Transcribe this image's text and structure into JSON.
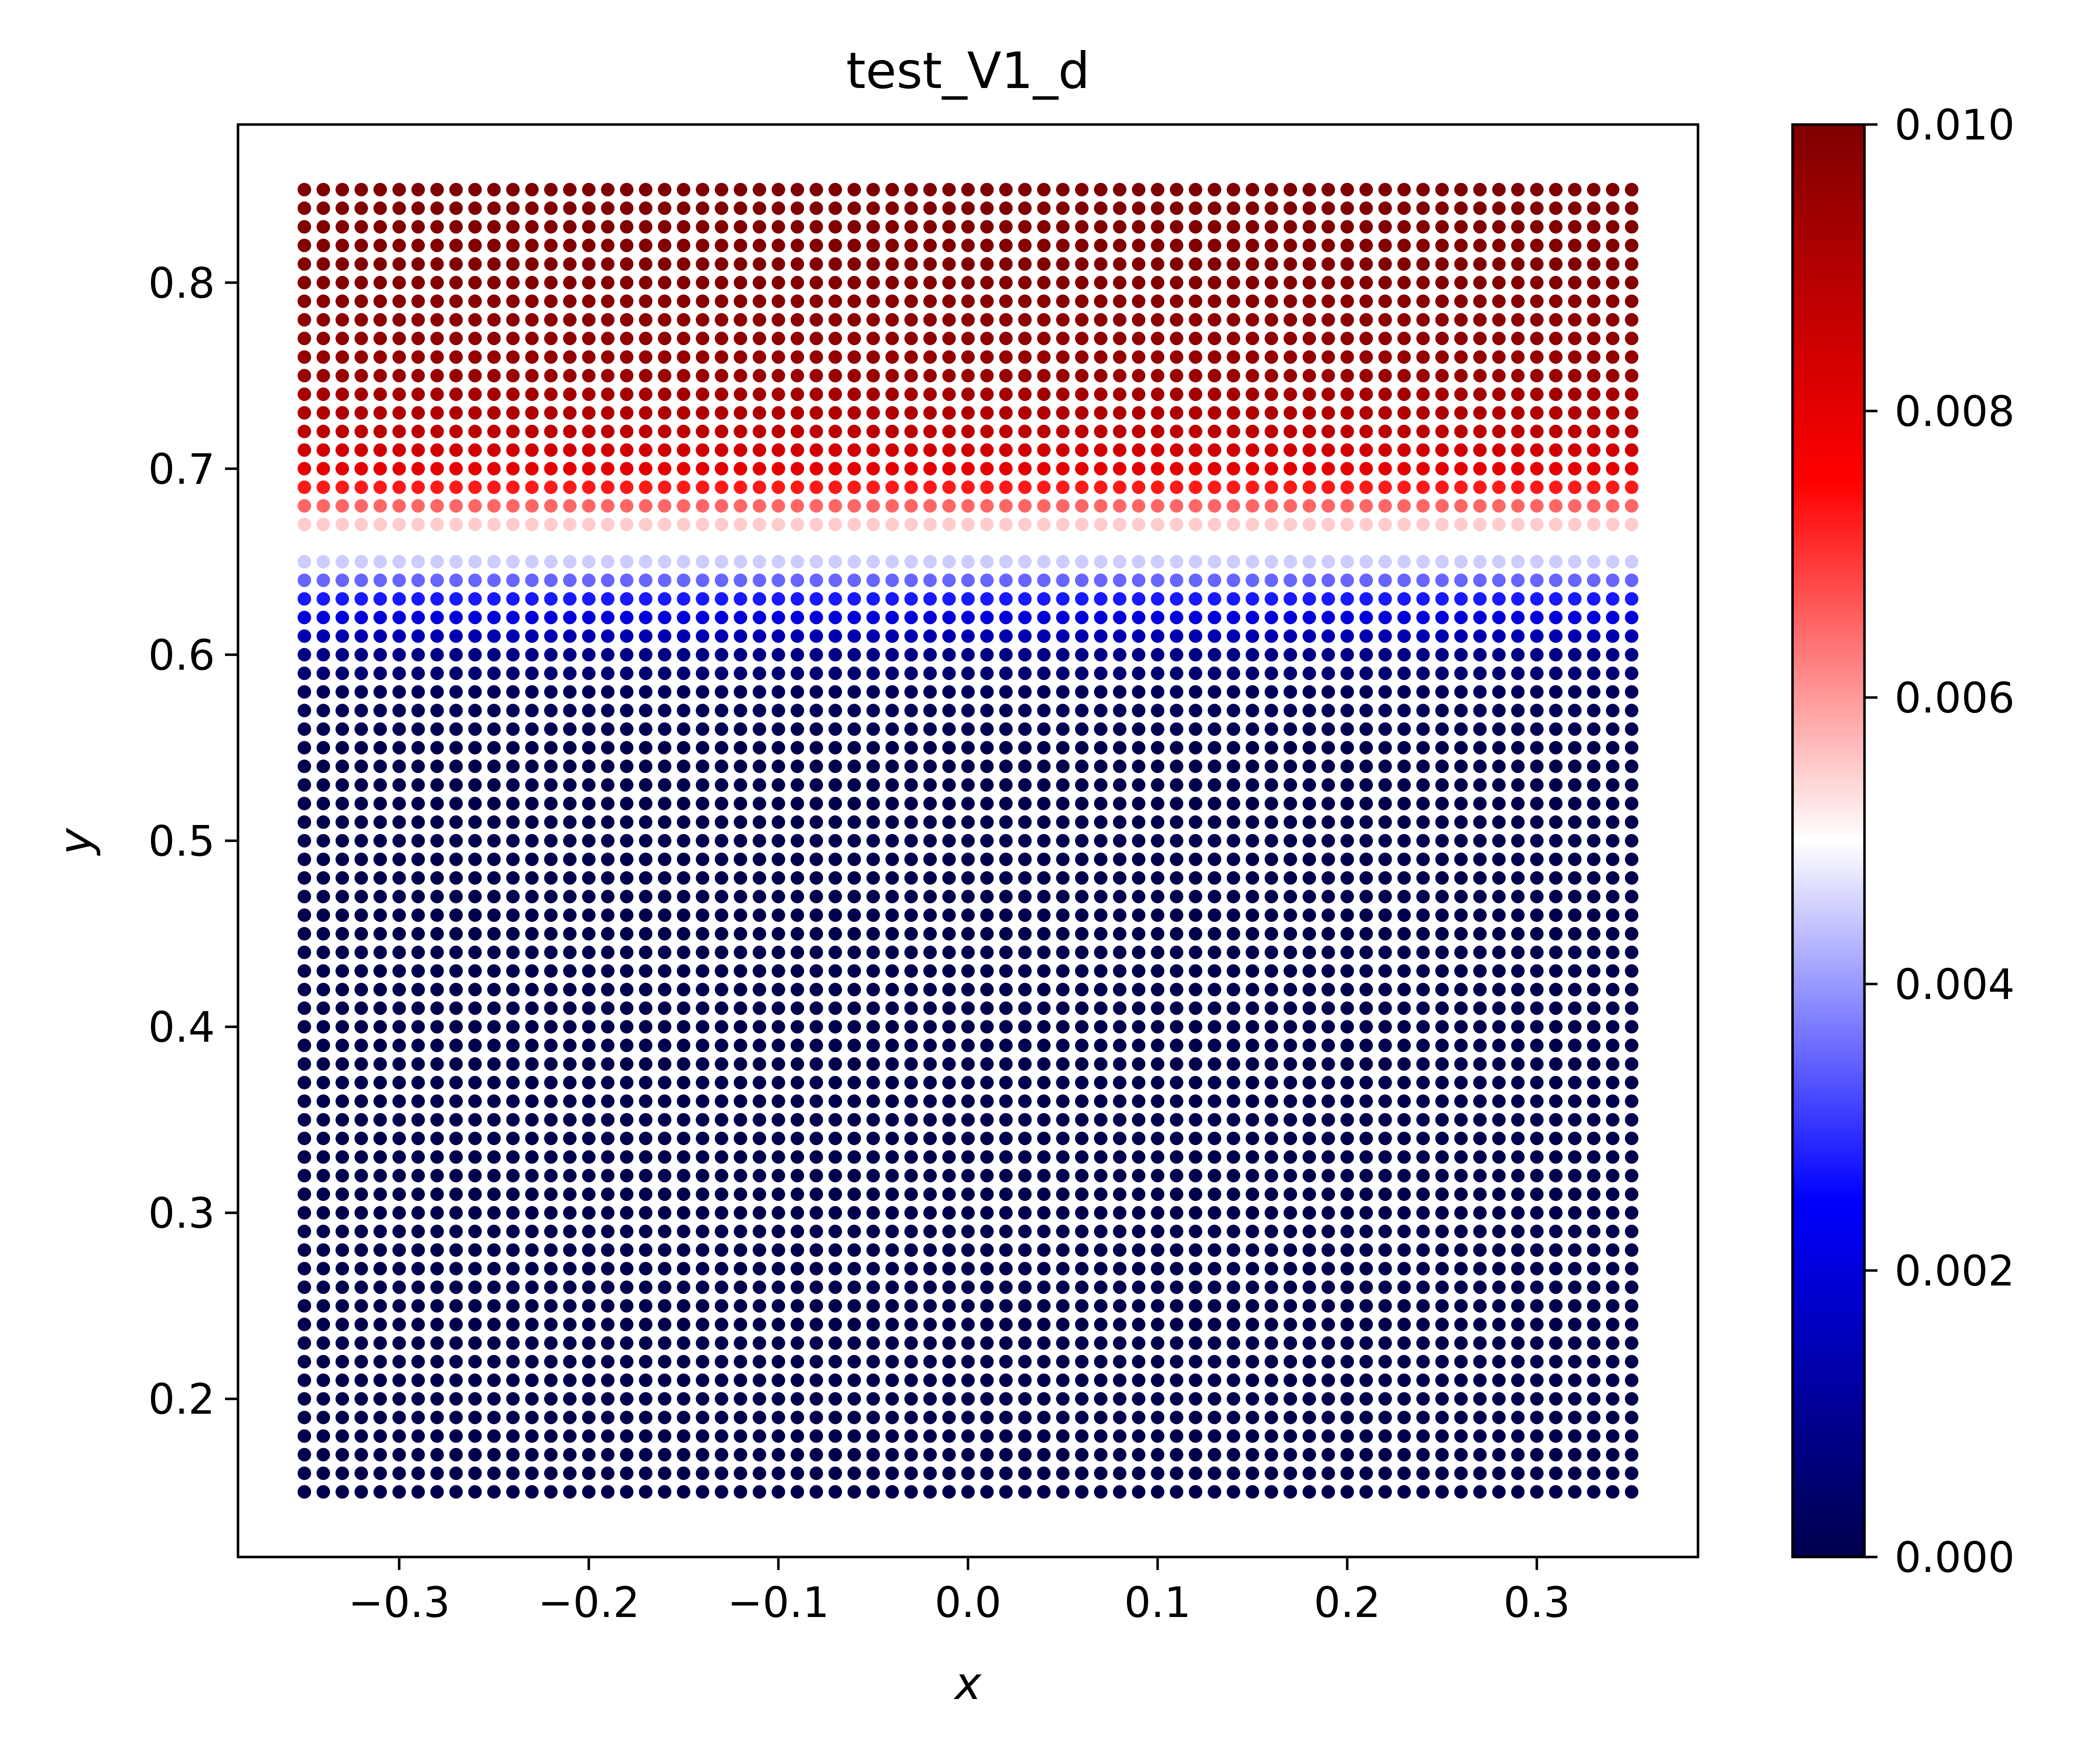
{
  "chart_data": {
    "type": "scatter",
    "title": "test_V1_d",
    "xlabel": "x",
    "ylabel": "y",
    "xlim": [
      -0.385,
      0.385
    ],
    "ylim": [
      0.115,
      0.885
    ],
    "x_ticks": [
      -0.3,
      -0.2,
      -0.1,
      0.0,
      0.1,
      0.2,
      0.3
    ],
    "x_tick_labels": [
      "−0.3",
      "−0.2",
      "−0.1",
      "0.0",
      "0.1",
      "0.2",
      "0.3"
    ],
    "y_ticks": [
      0.2,
      0.3,
      0.4,
      0.5,
      0.6,
      0.7,
      0.8
    ],
    "y_tick_labels": [
      "0.2",
      "0.3",
      "0.4",
      "0.5",
      "0.6",
      "0.7",
      "0.8"
    ],
    "grid": false,
    "points": {
      "x_range": [
        -0.35,
        0.35
      ],
      "y_range": [
        0.15,
        0.85
      ],
      "n_x": 71,
      "n_y": 71,
      "color_by": "y",
      "value_profile": [
        [
          0.15,
          0.0
        ],
        [
          0.55,
          0.0
        ],
        [
          0.58,
          0.0002
        ],
        [
          0.6,
          0.0008
        ],
        [
          0.62,
          0.002
        ],
        [
          0.64,
          0.0035
        ],
        [
          0.65,
          0.0045
        ],
        [
          0.66,
          0.005
        ],
        [
          0.67,
          0.0055
        ],
        [
          0.68,
          0.0065
        ],
        [
          0.7,
          0.008
        ],
        [
          0.72,
          0.0088
        ],
        [
          0.75,
          0.0095
        ],
        [
          0.8,
          0.0099
        ],
        [
          0.85,
          0.01
        ]
      ]
    },
    "colorbar": {
      "colormap": "seismic",
      "range": [
        0.0,
        0.01
      ],
      "ticks": [
        0.0,
        0.002,
        0.004,
        0.006,
        0.008,
        0.01
      ],
      "tick_labels": [
        "0.000",
        "0.002",
        "0.004",
        "0.006",
        "0.008",
        "0.010"
      ],
      "colors": [
        "#00004c",
        "#0000ff",
        "#ffffff",
        "#ff0000",
        "#7f0000"
      ]
    }
  }
}
